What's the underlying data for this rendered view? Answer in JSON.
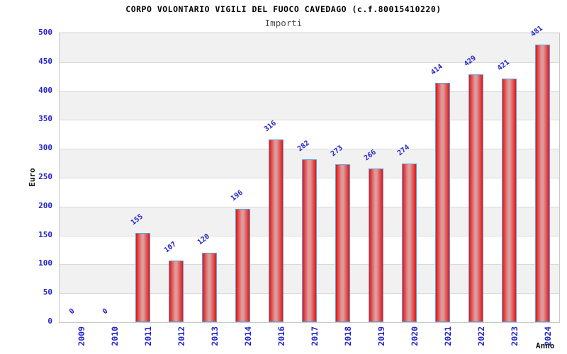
{
  "header": {
    "title": "CORPO VOLONTARIO VIGILI DEL FUOCO CAVEDAGO (c.f.80015410220)",
    "subtitle": "Importi"
  },
  "chart_data": {
    "type": "bar",
    "title": "CORPO VOLONTARIO VIGILI DEL FUOCO CAVEDAGO (c.f.80015410220)",
    "subtitle": "Importi",
    "xlabel": "Anno",
    "ylabel": "Euro",
    "categories": [
      "2009",
      "2010",
      "2011",
      "2012",
      "2013",
      "2014",
      "2016",
      "2017",
      "2018",
      "2019",
      "2020",
      "2021",
      "2022",
      "2023",
      "2024"
    ],
    "values": [
      0,
      0,
      155,
      107,
      120,
      196,
      316,
      282,
      273,
      266,
      274,
      414,
      429,
      421,
      481
    ],
    "ylim": [
      0,
      500
    ],
    "ytick_step": 50,
    "bar_value_labels_shown": true,
    "grid": "alternating horizontal bands every 50 units",
    "legend_position": "none",
    "colors": {
      "bar_fill_edge": "#e41414",
      "bar_fill_center": "#dd9c9c",
      "bar_border": "#5aa2e2",
      "tick_label": "#2222cc",
      "value_label": "#2222cc",
      "band": "#f1f1f1",
      "gridline": "#d9d9d9",
      "plot_border": "#c9c9c9",
      "title": "#000000",
      "subtitle": "#4a4a4a",
      "axis_title": "#111111"
    }
  }
}
